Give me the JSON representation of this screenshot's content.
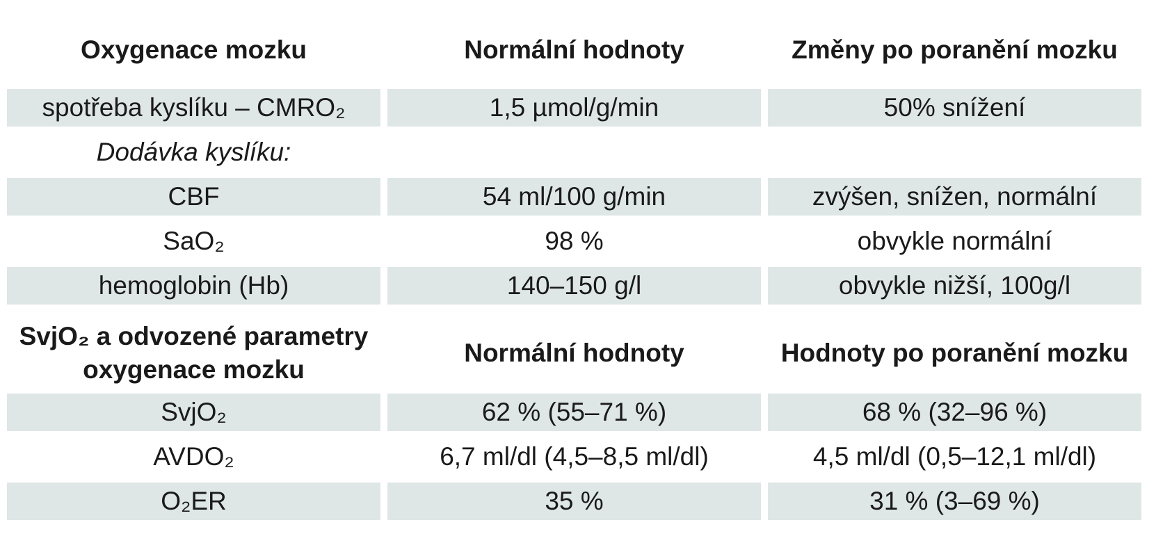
{
  "table": {
    "sections": [
      {
        "header": [
          "Oxygenace mozku",
          "Normální hodnoty",
          "Změny po poranění mozku"
        ],
        "rows": [
          [
            "spotřeba kyslíku – CMRO₂",
            "1,5 µmol/g/min",
            "50% snížení"
          ],
          [
            "Dodávka kyslíku:"
          ],
          [
            "CBF",
            "54 ml/100 g/min",
            "zvýšen, snížen, normální"
          ],
          [
            "SaO₂",
            "98 %",
            "obvykle normální"
          ],
          [
            "hemoglobin (Hb)",
            "140–150 g/l",
            "obvykle nižší, 100g/l"
          ]
        ]
      },
      {
        "header": [
          "SvjO₂ a odvozené para­metry oxygenace mozku",
          "Normální hodnoty",
          "Hodnoty po poranění mozku"
        ],
        "rows": [
          [
            "SvjO₂",
            "62 % (55–71 %)",
            "68 % (32–96 %)"
          ],
          [
            "AVDO₂",
            "6,7 ml/dl (4,5–8,5 ml/dl)",
            "4,5 ml/dl (0,5–12,1 ml/dl)"
          ],
          [
            "O₂ER",
            "35 %",
            "31 % (3–69 %)"
          ]
        ]
      }
    ]
  }
}
